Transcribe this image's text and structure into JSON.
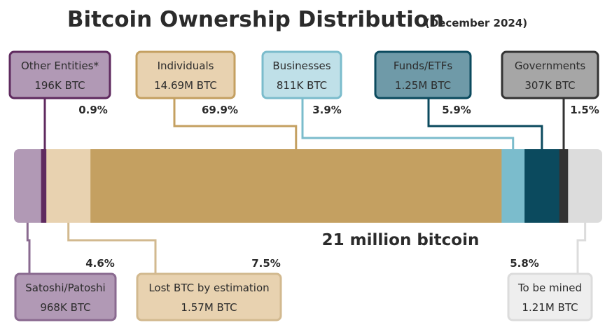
{
  "chart_data": {
    "type": "stacked-bar",
    "title": "Bitcoin Ownership Distribution",
    "subtitle": "(December 2024)",
    "total_label": "21 million bitcoin",
    "segments": [
      {
        "name": "Satoshi/Patoshi",
        "value_label": "968K BTC",
        "value_btc": 968000,
        "percent": 4.6,
        "percent_label": "4.6%",
        "fill": "#b199b5",
        "box_fill": "#b199b5",
        "border": "#8a6a90"
      },
      {
        "name": "Other Entities*",
        "value_label": "196K BTC",
        "value_btc": 196000,
        "percent": 0.9,
        "percent_label": "0.9%",
        "fill": "#5f2a5f",
        "box_fill": "#b199b5",
        "border": "#5f2a5f"
      },
      {
        "name": "Lost BTC by estimation",
        "value_label": "1.57M BTC",
        "value_btc": 1570000,
        "percent": 7.5,
        "percent_label": "7.5%",
        "fill": "#e8d2b0",
        "box_fill": "#e8d2b0",
        "border": "#d2b98f"
      },
      {
        "name": "Individuals",
        "value_label": "14.69M BTC",
        "value_btc": 14690000,
        "percent": 69.9,
        "percent_label": "69.9%",
        "fill": "#c4a061",
        "box_fill": "#e8d2b0",
        "border": "#c4a061"
      },
      {
        "name": "Businesses",
        "value_label": "811K BTC",
        "value_btc": 811000,
        "percent": 3.9,
        "percent_label": "3.9%",
        "fill": "#7bbccc",
        "box_fill": "#bfe0e8",
        "border": "#7bbccc"
      },
      {
        "name": "Funds/ETFs",
        "value_label": "1.25M BTC",
        "value_btc": 1250000,
        "percent": 5.9,
        "percent_label": "5.9%",
        "fill": "#0b4a5e",
        "box_fill": "#6f9aa8",
        "border": "#0b4a5e"
      },
      {
        "name": "Governments",
        "value_label": "307K BTC",
        "value_btc": 307000,
        "percent": 1.5,
        "percent_label": "1.5%",
        "fill": "#333333",
        "box_fill": "#a6a6a6",
        "border": "#333333"
      },
      {
        "name": "To be mined",
        "value_label": "1.21M BTC",
        "value_btc": 1210000,
        "percent": 5.8,
        "percent_label": "5.8%",
        "fill": "#dcdcdc",
        "box_fill": "#eeeeee",
        "border": "#dcdcdc"
      }
    ]
  }
}
